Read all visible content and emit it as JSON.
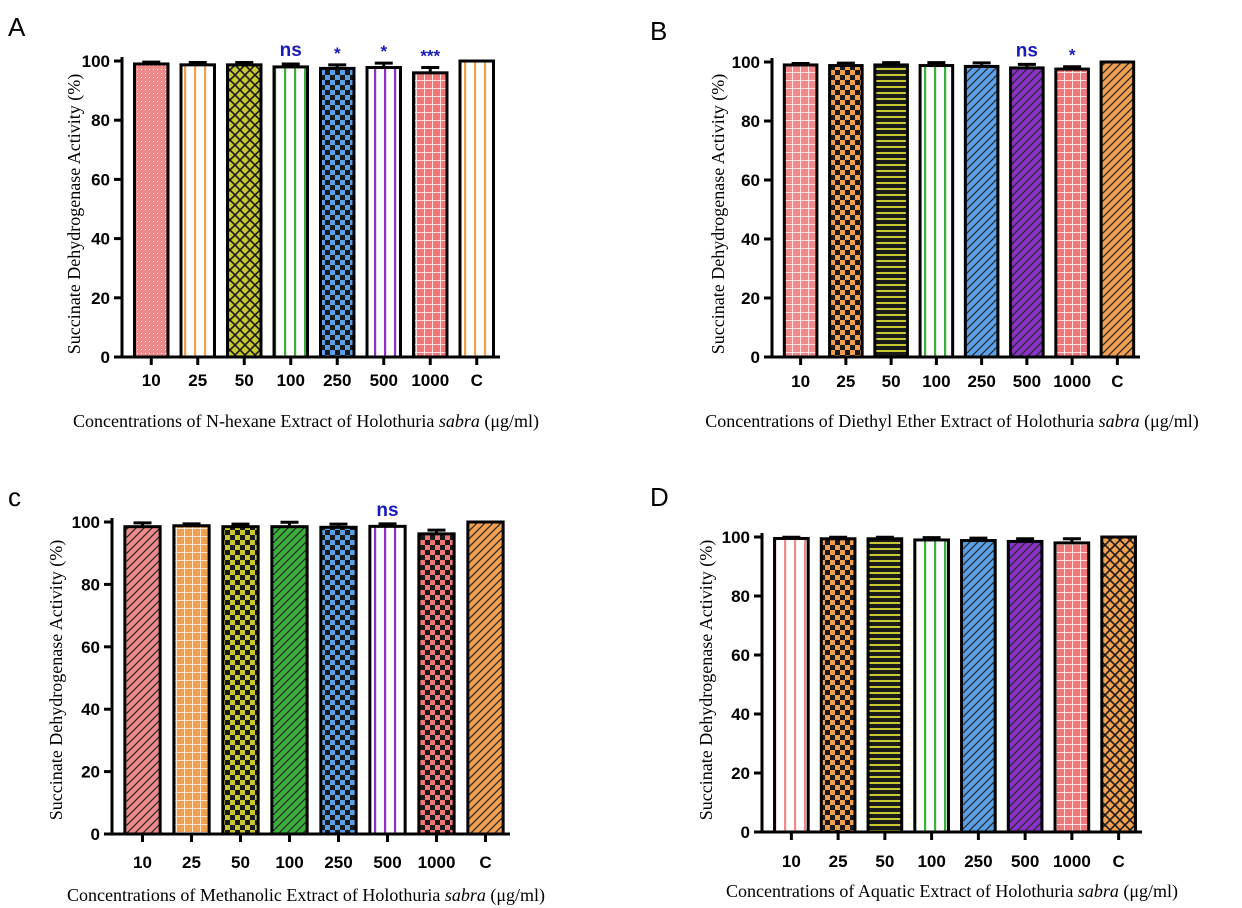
{
  "colors": {
    "salmon": "#f08a8a",
    "orange": "#f0a050",
    "olive": "#c8c832",
    "green": "#3ab03a",
    "blue": "#5aa0e8",
    "purple": "#8a32c8",
    "pink": "#f07878",
    "sig_text": "#1a1ab8"
  },
  "chart_data": [
    {
      "type": "bar",
      "panel": "A",
      "categories": [
        "10",
        "25",
        "50",
        "100",
        "250",
        "500",
        "1000",
        "C"
      ],
      "values": [
        99,
        98.7,
        98.7,
        98,
        97.5,
        97.8,
        96,
        100
      ],
      "errors": [
        0.6,
        0.8,
        0.8,
        1.0,
        1.2,
        1.5,
        1.8,
        0
      ],
      "bar_colors": [
        "salmon",
        "orange",
        "olive",
        "green",
        "blue",
        "purple",
        "pink",
        "orange"
      ],
      "patterns": [
        "dots",
        "vlines",
        "crosshatch",
        "vlines",
        "checker",
        "vlines",
        "grid",
        "vlines"
      ],
      "significance": [
        "",
        "",
        "",
        "ns",
        "*",
        "*",
        "***",
        ""
      ],
      "yticks": [
        "0",
        "20",
        "40",
        "60",
        "80",
        "100"
      ],
      "ylim": [
        0,
        100
      ],
      "ylabel": "Succinate Dehydrogenase Activity (%)",
      "xlabel_pre": "Concentrations of N-hexane Extract of Holothuria ",
      "xlabel_species": "sabra",
      "xlabel_post": " (μg/ml)"
    },
    {
      "type": "bar",
      "panel": "B",
      "categories": [
        "10",
        "25",
        "50",
        "100",
        "250",
        "500",
        "1000",
        "C"
      ],
      "values": [
        99,
        98.8,
        99,
        98.8,
        98.5,
        98,
        97.6,
        100
      ],
      "errors": [
        0.5,
        0.8,
        0.8,
        1.0,
        1.2,
        1.2,
        0.8,
        0
      ],
      "bar_colors": [
        "salmon",
        "orange",
        "olive",
        "green",
        "blue",
        "purple",
        "pink",
        "orange"
      ],
      "patterns": [
        "grid",
        "checker",
        "hlines",
        "vlines",
        "diag",
        "diag",
        "grid",
        "diag"
      ],
      "significance": [
        "",
        "",
        "",
        "",
        "",
        "ns",
        "*",
        ""
      ],
      "yticks": [
        "0",
        "20",
        "40",
        "60",
        "80",
        "100"
      ],
      "ylim": [
        0,
        100
      ],
      "ylabel": "Succinate Dehydrogenase Activity (%)",
      "xlabel_pre": "Concentrations of Diethyl Ether Extract of Holothuria ",
      "xlabel_species": "sabra",
      "xlabel_post": " (μg/ml)"
    },
    {
      "type": "bar",
      "panel": "c",
      "categories": [
        "10",
        "25",
        "50",
        "100",
        "250",
        "500",
        "1000",
        "C"
      ],
      "values": [
        98.5,
        98.8,
        98.5,
        98.5,
        98.3,
        98.6,
        96.2,
        100
      ],
      "errors": [
        1.2,
        0.6,
        0.8,
        1.4,
        1.0,
        0.8,
        1.2,
        0
      ],
      "bar_colors": [
        "salmon",
        "orange",
        "olive",
        "green",
        "blue",
        "purple",
        "pink",
        "orange"
      ],
      "patterns": [
        "diag",
        "grid",
        "checker",
        "diag",
        "checker",
        "vlines",
        "checker",
        "diag"
      ],
      "significance": [
        "",
        "",
        "",
        "",
        "",
        "ns",
        "",
        ""
      ],
      "yticks": [
        "0",
        "20",
        "40",
        "60",
        "80",
        "100"
      ],
      "ylim": [
        0,
        100
      ],
      "ylabel": "Succinate Dehydrogenase Activity (%)",
      "xlabel_pre": "Concentrations of Methanolic Extract of Holothuria ",
      "xlabel_species": "sabra",
      "xlabel_post": " (μg/ml)"
    },
    {
      "type": "bar",
      "panel": "D",
      "categories": [
        "10",
        "25",
        "50",
        "100",
        "250",
        "500",
        "1000",
        "C"
      ],
      "values": [
        99.5,
        99.4,
        99.4,
        99,
        98.8,
        98.5,
        98,
        100
      ],
      "errors": [
        0.4,
        0.5,
        0.5,
        0.8,
        0.8,
        0.9,
        1.4,
        0
      ],
      "bar_colors": [
        "salmon",
        "orange",
        "olive",
        "green",
        "blue",
        "purple",
        "pink",
        "orange"
      ],
      "patterns": [
        "vlines",
        "checker",
        "hlines",
        "vlines",
        "diag",
        "diag",
        "grid",
        "crosshatch"
      ],
      "significance": [
        "",
        "",
        "",
        "",
        "",
        "",
        "",
        ""
      ],
      "yticks": [
        "0",
        "20",
        "40",
        "60",
        "80",
        "100"
      ],
      "ylim": [
        0,
        100
      ],
      "ylabel": "Succinate Dehydrogenase Activity (%)",
      "xlabel_pre": "Concentrations of Aquatic Extract of Holothuria ",
      "xlabel_species": "sabra",
      "xlabel_post": " (μg/ml)"
    }
  ]
}
